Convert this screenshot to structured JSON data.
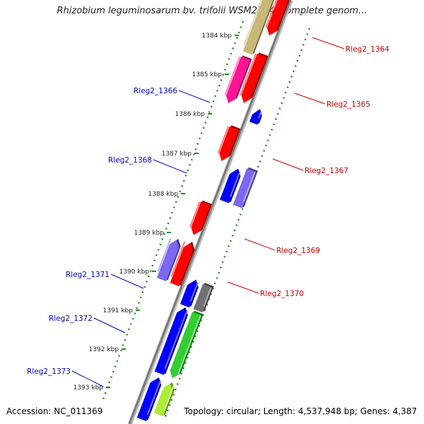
{
  "title": "Rhizobium leguminosarum bv. trifolii WSM2304, complete genom...",
  "accession": "Accession: NC_011369",
  "topology": "Topology: circular; Length: 4,537,948 bp; Genes: 4,387",
  "colors": {
    "forward_label": "#cc0000",
    "reverse_label": "#0000cc",
    "backbone": "#808080",
    "tick_dots": "#228b22"
  },
  "ruler": {
    "ticks": [
      "1384 kbp",
      "1385 kbp",
      "1386 kbp",
      "1387 kbp",
      "1388 kbp",
      "1389 kbp",
      "1390 kbp",
      "1391 kbp",
      "1392 kbp",
      "1393 kbp"
    ]
  },
  "genes": [
    {
      "name": "Rleg2_1364",
      "strand": "forward",
      "color": "#ff0000"
    },
    {
      "name": "Rleg2_1365",
      "strand": "forward",
      "color": "#ff0000"
    },
    {
      "name": "Rleg2_1366",
      "strand": "reverse",
      "color": "#0000ff"
    },
    {
      "name": "Rleg2_1367",
      "strand": "forward",
      "color": "#ff0000"
    },
    {
      "name": "Rleg2_1368",
      "strand": "reverse",
      "color": "#0000ff"
    },
    {
      "name": "Rleg2_1369",
      "strand": "forward",
      "color": "#ff0000"
    },
    {
      "name": "Rleg2_1370",
      "strand": "forward",
      "color": "#ff0000"
    },
    {
      "name": "Rleg2_1371",
      "strand": "reverse",
      "color": "#0000ff"
    },
    {
      "name": "Rleg2_1372",
      "strand": "reverse",
      "color": "#0000ff"
    },
    {
      "name": "Rleg2_1373",
      "strand": "reverse",
      "color": "#0000ff"
    }
  ],
  "feature_tracks": [
    {
      "color": "#c8b878"
    },
    {
      "color": "#ff1493"
    },
    {
      "color": "#7b68ee"
    },
    {
      "color": "#7b68ee"
    },
    {
      "color": "#707070"
    },
    {
      "color": "#33cc33"
    },
    {
      "color": "#aaee33"
    }
  ]
}
